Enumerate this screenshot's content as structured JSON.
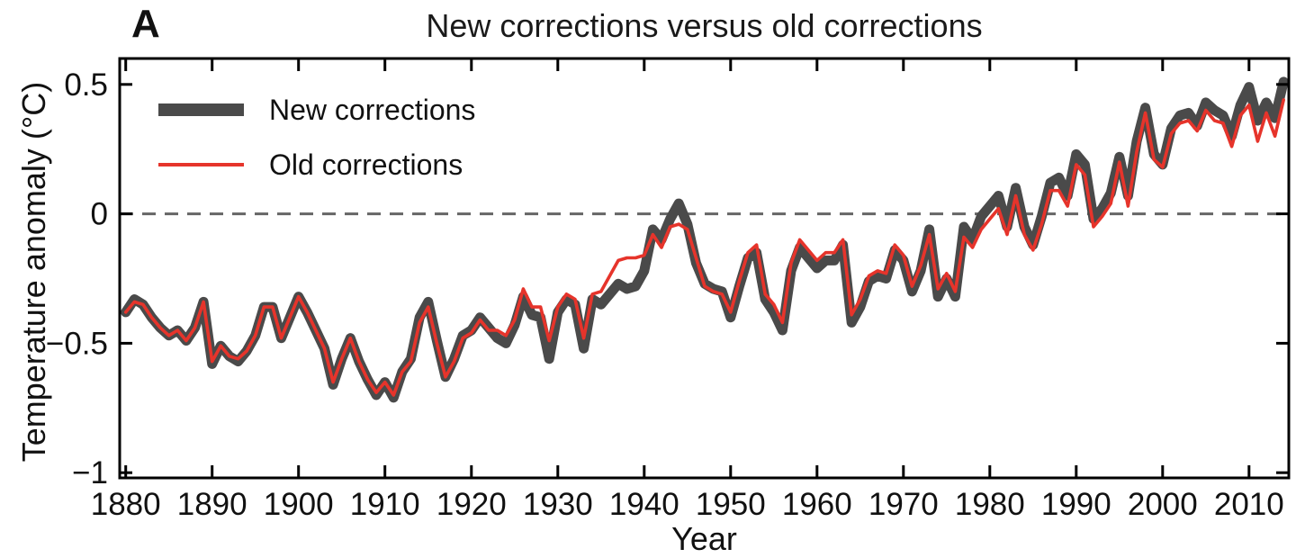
{
  "panel_label": "A",
  "colors": {
    "new_series": "#4a4a4a",
    "old_series": "#e6342b",
    "zero_line": "#666666",
    "axis": "#000000",
    "text": "#111111"
  },
  "chart_data": {
    "type": "line",
    "title": "New corrections versus old corrections",
    "xlabel": "Year",
    "ylabel": "Temperature anomaly (°C)",
    "xlim": [
      1879.3,
      2014.6
    ],
    "ylim": [
      -1.02,
      0.6
    ],
    "grid": false,
    "zero_line": {
      "style": "dashed",
      "value": 0
    },
    "legend_position": "top-left-inside",
    "x_ticks": [
      1880,
      1890,
      1900,
      1910,
      1920,
      1930,
      1940,
      1950,
      1960,
      1970,
      1980,
      1990,
      2000,
      2010
    ],
    "x_tick_labels": [
      "1880",
      "1890",
      "1900",
      "1910",
      "1920",
      "1930",
      "1940",
      "1950",
      "1960",
      "1970",
      "1980",
      "1990",
      "2000",
      "2010"
    ],
    "y_ticks": [
      0.5,
      0,
      -0.5,
      -1
    ],
    "y_tick_labels": [
      "0.5",
      "0",
      "−0.5",
      "−1"
    ],
    "x_start_year": 1880,
    "x_end_year": 2014,
    "series": [
      {
        "name": "New corrections",
        "color": "#4a4a4a",
        "line_width": 11,
        "values": [
          -0.38,
          -0.33,
          -0.35,
          -0.4,
          -0.44,
          -0.47,
          -0.45,
          -0.49,
          -0.44,
          -0.34,
          -0.58,
          -0.51,
          -0.55,
          -0.57,
          -0.53,
          -0.47,
          -0.36,
          -0.36,
          -0.48,
          -0.4,
          -0.32,
          -0.38,
          -0.45,
          -0.52,
          -0.66,
          -0.56,
          -0.48,
          -0.57,
          -0.64,
          -0.7,
          -0.65,
          -0.71,
          -0.61,
          -0.56,
          -0.4,
          -0.34,
          -0.49,
          -0.63,
          -0.56,
          -0.47,
          -0.45,
          -0.4,
          -0.44,
          -0.48,
          -0.5,
          -0.43,
          -0.32,
          -0.39,
          -0.4,
          -0.56,
          -0.38,
          -0.33,
          -0.35,
          -0.52,
          -0.33,
          -0.35,
          -0.31,
          -0.27,
          -0.29,
          -0.28,
          -0.22,
          -0.06,
          -0.1,
          -0.02,
          0.04,
          -0.04,
          -0.19,
          -0.27,
          -0.29,
          -0.3,
          -0.4,
          -0.28,
          -0.17,
          -0.15,
          -0.33,
          -0.38,
          -0.45,
          -0.22,
          -0.13,
          -0.17,
          -0.21,
          -0.18,
          -0.18,
          -0.12,
          -0.42,
          -0.36,
          -0.26,
          -0.24,
          -0.25,
          -0.14,
          -0.18,
          -0.3,
          -0.22,
          -0.06,
          -0.32,
          -0.25,
          -0.32,
          -0.05,
          -0.1,
          -0.01,
          0.03,
          0.07,
          -0.05,
          0.1,
          -0.05,
          -0.12,
          -0.01,
          0.12,
          0.14,
          0.07,
          0.23,
          0.19,
          -0.02,
          0.02,
          0.08,
          0.22,
          0.07,
          0.28,
          0.41,
          0.23,
          0.19,
          0.33,
          0.38,
          0.39,
          0.34,
          0.43,
          0.4,
          0.38,
          0.3,
          0.42,
          0.49,
          0.36,
          0.43,
          0.37,
          0.51
        ]
      },
      {
        "name": "Old corrections",
        "color": "#e6342b",
        "line_width": 3.6,
        "values": [
          -0.38,
          -0.34,
          -0.35,
          -0.4,
          -0.44,
          -0.47,
          -0.45,
          -0.49,
          -0.44,
          -0.34,
          -0.57,
          -0.51,
          -0.55,
          -0.56,
          -0.53,
          -0.47,
          -0.36,
          -0.36,
          -0.48,
          -0.4,
          -0.32,
          -0.38,
          -0.45,
          -0.52,
          -0.65,
          -0.56,
          -0.48,
          -0.57,
          -0.64,
          -0.69,
          -0.65,
          -0.7,
          -0.61,
          -0.57,
          -0.42,
          -0.36,
          -0.5,
          -0.63,
          -0.57,
          -0.48,
          -0.46,
          -0.41,
          -0.45,
          -0.45,
          -0.47,
          -0.41,
          -0.29,
          -0.36,
          -0.36,
          -0.49,
          -0.36,
          -0.31,
          -0.33,
          -0.48,
          -0.31,
          -0.3,
          -0.24,
          -0.18,
          -0.17,
          -0.17,
          -0.16,
          -0.08,
          -0.13,
          -0.05,
          -0.04,
          -0.06,
          -0.17,
          -0.28,
          -0.3,
          -0.31,
          -0.38,
          -0.26,
          -0.15,
          -0.12,
          -0.31,
          -0.35,
          -0.42,
          -0.19,
          -0.1,
          -0.14,
          -0.18,
          -0.15,
          -0.15,
          -0.1,
          -0.39,
          -0.33,
          -0.24,
          -0.22,
          -0.23,
          -0.12,
          -0.16,
          -0.28,
          -0.2,
          -0.08,
          -0.29,
          -0.23,
          -0.3,
          -0.09,
          -0.13,
          -0.06,
          -0.02,
          0.02,
          -0.08,
          0.07,
          -0.08,
          -0.14,
          -0.04,
          0.09,
          0.09,
          0.03,
          0.19,
          0.15,
          -0.05,
          -0.01,
          0.04,
          0.2,
          0.03,
          0.24,
          0.39,
          0.21,
          0.18,
          0.31,
          0.35,
          0.36,
          0.32,
          0.4,
          0.36,
          0.35,
          0.26,
          0.38,
          0.42,
          0.28,
          0.39,
          0.3,
          0.44
        ]
      }
    ]
  }
}
